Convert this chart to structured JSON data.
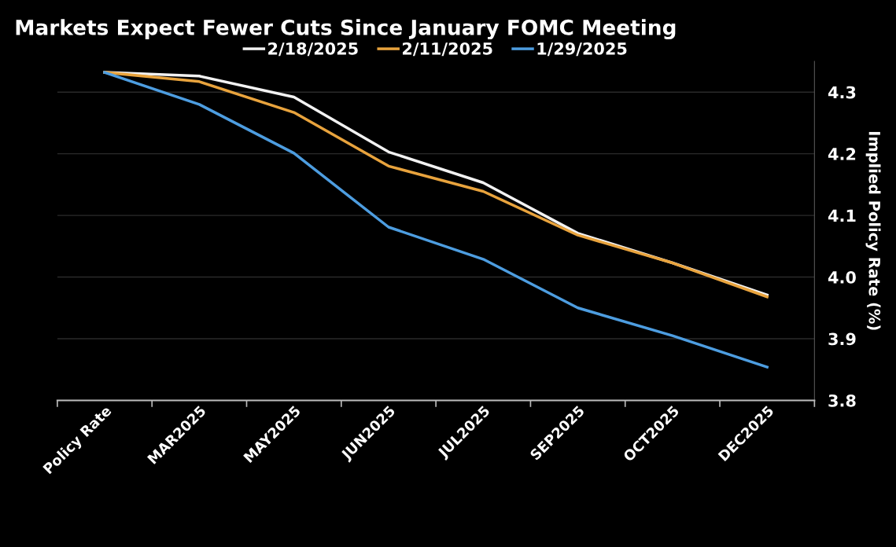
{
  "chart_data": {
    "type": "line",
    "title": "Markets Expect Fewer Cuts Since January FOMC Meeting",
    "y2label": "Implied Policy Rate (%)",
    "categories": [
      "Policy Rate",
      "MAR2025",
      "MAY2025",
      "JUN2025",
      "JUL2025",
      "SEP2025",
      "OCT2025",
      "DEC2025"
    ],
    "series": [
      {
        "name": "2/18/2025",
        "color": "#f2f2f2",
        "axis": "y2",
        "values": [
          4.332,
          4.326,
          4.292,
          4.203,
          4.153,
          4.071,
          4.023,
          3.971
        ]
      },
      {
        "name": "2/11/2025",
        "color": "#e8a33d",
        "axis": "y2",
        "values": [
          4.332,
          4.317,
          4.267,
          4.18,
          4.139,
          4.068,
          4.023,
          3.968
        ]
      },
      {
        "name": "1/29/2025",
        "color": "#4d9de0",
        "axis": "y2",
        "values": [
          4.332,
          4.28,
          4.201,
          4.081,
          4.029,
          3.95,
          3.905,
          3.854
        ]
      }
    ],
    "y2lim": [
      3.8,
      4.35
    ],
    "y2ticks": [
      3.8,
      3.9,
      {
        "value": 4.0,
        "label": "4.0"
      },
      4.1,
      4.2,
      4.3
    ],
    "grid": "y",
    "legend": "top",
    "marker": "none",
    "line_style": "solid"
  }
}
